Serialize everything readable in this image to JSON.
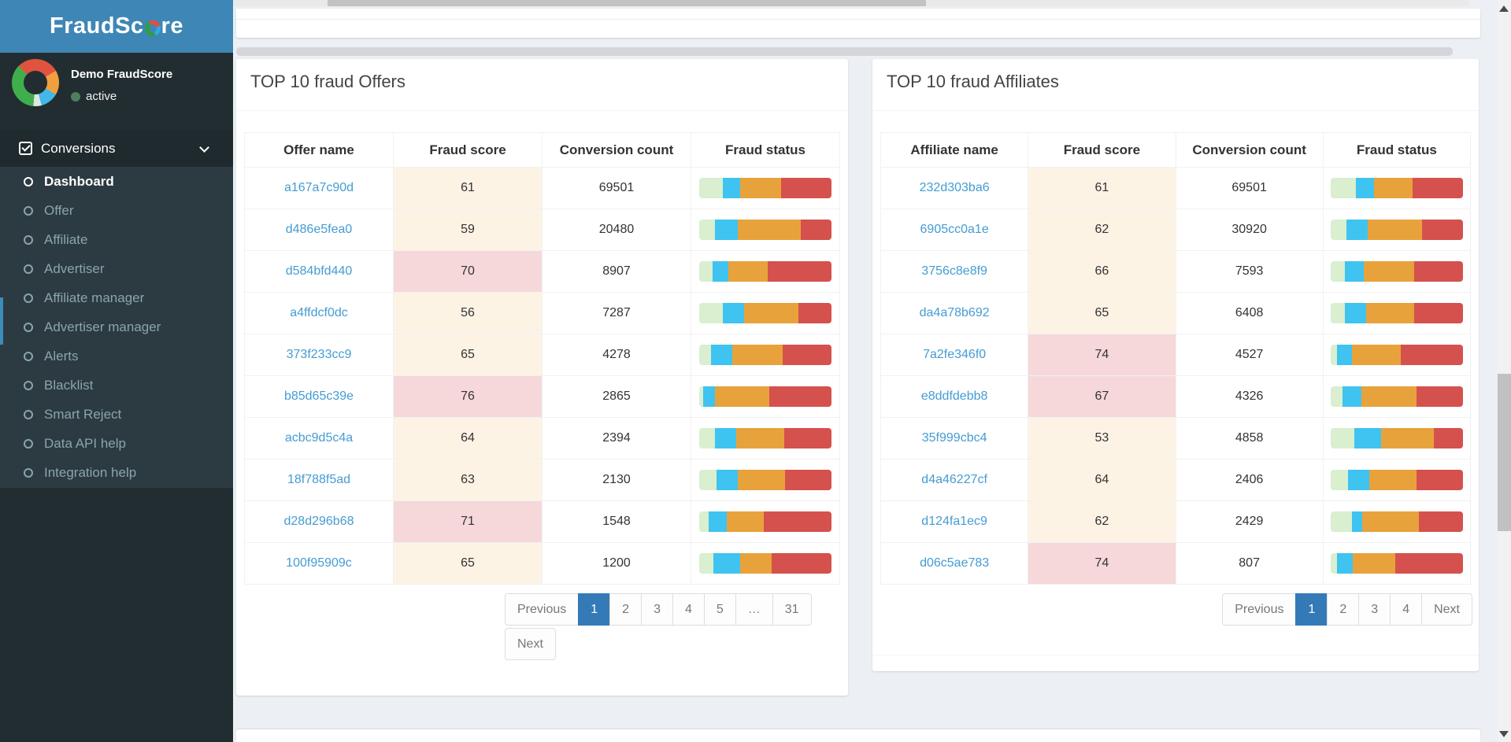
{
  "sidebar": {
    "brand": {
      "prefix": "FraudSc",
      "suffix": "re"
    },
    "user": {
      "name": "Demo FraudScore",
      "status": "active"
    },
    "menu": {
      "label": "Conversions",
      "active": "Dashboard",
      "items": [
        "Dashboard",
        "Offer",
        "Affiliate",
        "Advertiser",
        "Affiliate manager",
        "Advertiser manager",
        "Alerts",
        "Blacklist",
        "Smart Reject",
        "Data API help",
        "Integration help"
      ]
    }
  },
  "colors": {
    "sidebar_accent": "#3c8dbc",
    "link": "#459cd3",
    "score_warning_bg": "#fdf3e5",
    "score_danger_bg": "#f6d8da",
    "pagination_active": "#337ab7",
    "status_dot": "#4f7e5d",
    "bar_segments": [
      "#d9efd0",
      "#3fc3f0",
      "#e8a23c",
      "#d5514d"
    ]
  },
  "bar_segment_names": [
    "ok",
    "suspicious",
    "risky",
    "fraud"
  ],
  "panels": [
    {
      "title": "TOP 10 fraud Offers",
      "entity": "offer",
      "columns": [
        "Offer name",
        "Fraud score",
        "Conversion count",
        "Fraud status"
      ],
      "rows": [
        {
          "name": "a167a7c90d",
          "score": "61",
          "level": "warning",
          "count": "69501",
          "bar": [
            18,
            13,
            31,
            38
          ]
        },
        {
          "name": "d486e5fea0",
          "score": "59",
          "level": "warning",
          "count": "20480",
          "bar": [
            12,
            17,
            48,
            23
          ]
        },
        {
          "name": "d584bfd440",
          "score": "70",
          "level": "danger",
          "count": "8907",
          "bar": [
            10,
            12,
            30,
            48
          ]
        },
        {
          "name": "a4ffdcf0dc",
          "score": "56",
          "level": "warning",
          "count": "7287",
          "bar": [
            18,
            16,
            41,
            25
          ]
        },
        {
          "name": "373f233cc9",
          "score": "65",
          "level": "warning",
          "count": "4278",
          "bar": [
            9,
            16,
            38,
            37
          ]
        },
        {
          "name": "b85d65c39e",
          "score": "76",
          "level": "danger",
          "count": "2865",
          "bar": [
            3,
            9,
            41,
            47
          ]
        },
        {
          "name": "acbc9d5c4a",
          "score": "64",
          "level": "warning",
          "count": "2394",
          "bar": [
            12,
            16,
            36,
            36
          ]
        },
        {
          "name": "18f788f5ad",
          "score": "63",
          "level": "warning",
          "count": "2130",
          "bar": [
            13,
            16,
            36,
            35
          ]
        },
        {
          "name": "d28d296b68",
          "score": "71",
          "level": "danger",
          "count": "1548",
          "bar": [
            7,
            14,
            28,
            51
          ]
        },
        {
          "name": "100f95909c",
          "score": "65",
          "level": "warning",
          "count": "1200",
          "bar": [
            11,
            20,
            24,
            45
          ]
        }
      ],
      "pagination": [
        {
          "label": "Previous",
          "rounded": "left"
        },
        {
          "label": "1",
          "active": true
        },
        {
          "label": "2"
        },
        {
          "label": "3"
        },
        {
          "label": "4"
        },
        {
          "label": "5"
        },
        {
          "label": "…"
        },
        {
          "label": "31",
          "rounded": "right"
        },
        {
          "label": "Next",
          "rounded": "all"
        }
      ]
    },
    {
      "title": "TOP 10 fraud Affiliates",
      "entity": "affiliate",
      "columns": [
        "Affiliate name",
        "Fraud score",
        "Conversion count",
        "Fraud status"
      ],
      "rows": [
        {
          "name": "232d303ba6",
          "score": "61",
          "level": "warning",
          "count": "69501",
          "bar": [
            19,
            14,
            29,
            38
          ]
        },
        {
          "name": "6905cc0a1e",
          "score": "62",
          "level": "warning",
          "count": "30920",
          "bar": [
            12,
            16,
            41,
            31
          ]
        },
        {
          "name": "3756c8e8f9",
          "score": "66",
          "level": "warning",
          "count": "7593",
          "bar": [
            11,
            14,
            38,
            37
          ]
        },
        {
          "name": "da4a78b692",
          "score": "65",
          "level": "warning",
          "count": "6408",
          "bar": [
            11,
            16,
            36,
            37
          ]
        },
        {
          "name": "7a2fe346f0",
          "score": "74",
          "level": "danger",
          "count": "4527",
          "bar": [
            5,
            11,
            37,
            47
          ]
        },
        {
          "name": "e8ddfdebb8",
          "score": "67",
          "level": "danger",
          "count": "4326",
          "bar": [
            9,
            14,
            42,
            35
          ]
        },
        {
          "name": "35f999cbc4",
          "score": "53",
          "level": "warning",
          "count": "4858",
          "bar": [
            18,
            20,
            40,
            22
          ]
        },
        {
          "name": "d4a46227cf",
          "score": "64",
          "level": "warning",
          "count": "2406",
          "bar": [
            13,
            16,
            36,
            35
          ]
        },
        {
          "name": "d124fa1ec9",
          "score": "62",
          "level": "warning",
          "count": "2429",
          "bar": [
            16,
            8,
            43,
            33
          ]
        },
        {
          "name": "d06c5ae783",
          "score": "74",
          "level": "danger",
          "count": "807",
          "bar": [
            5,
            12,
            32,
            51
          ]
        }
      ],
      "pagination": [
        {
          "label": "Previous",
          "rounded": "left"
        },
        {
          "label": "1",
          "active": true
        },
        {
          "label": "2"
        },
        {
          "label": "3"
        },
        {
          "label": "4"
        },
        {
          "label": "Next",
          "rounded": "right"
        }
      ]
    }
  ]
}
